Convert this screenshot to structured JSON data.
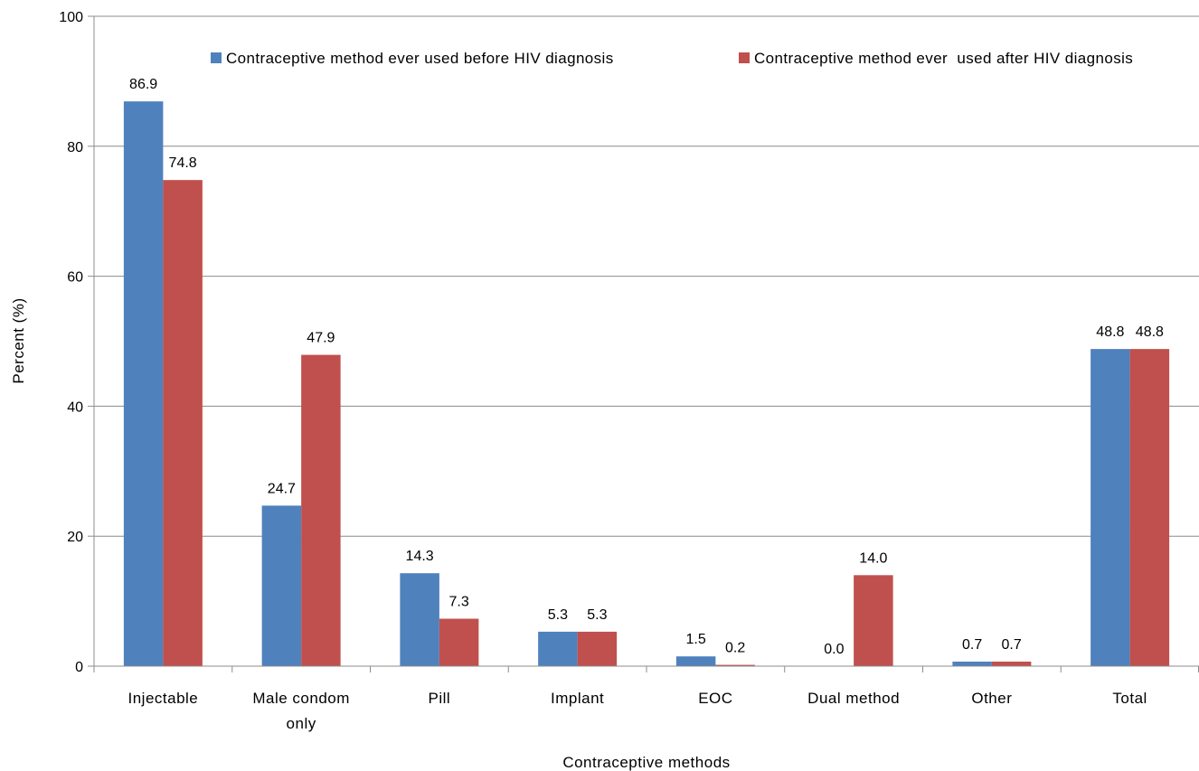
{
  "chart_data": {
    "type": "bar",
    "title": "",
    "xlabel": "Contraceptive methods",
    "ylabel": "Percent (%)",
    "ylim": [
      0,
      100
    ],
    "yticks": [
      0,
      20,
      40,
      60,
      80,
      100
    ],
    "grid": true,
    "legend_position": "top",
    "categories": [
      [
        "Injectable"
      ],
      [
        "Male condom",
        "only"
      ],
      [
        "Pill"
      ],
      [
        "Implant"
      ],
      [
        "EOC"
      ],
      [
        "Dual method"
      ],
      [
        "Other"
      ],
      [
        "Total"
      ]
    ],
    "series": [
      {
        "name": "Contraceptive method ever used before HIV diagnosis",
        "color": "#4F81BD",
        "values": [
          86.9,
          24.7,
          14.3,
          5.3,
          1.5,
          0.0,
          0.7,
          48.8
        ],
        "labels": [
          "86.9",
          "24.7",
          "14.3",
          "5.3",
          "1.5",
          "0.0",
          "0.7",
          "48.8"
        ]
      },
      {
        "name": "Contraceptive method ever  used after HIV diagnosis",
        "color": "#C0504D",
        "values": [
          74.8,
          47.9,
          7.3,
          5.3,
          0.2,
          14.0,
          0.7,
          48.8
        ],
        "labels": [
          "74.8",
          "47.9",
          "7.3",
          "5.3",
          "0.2",
          "14.0",
          "0.7",
          "48.8"
        ]
      }
    ]
  }
}
